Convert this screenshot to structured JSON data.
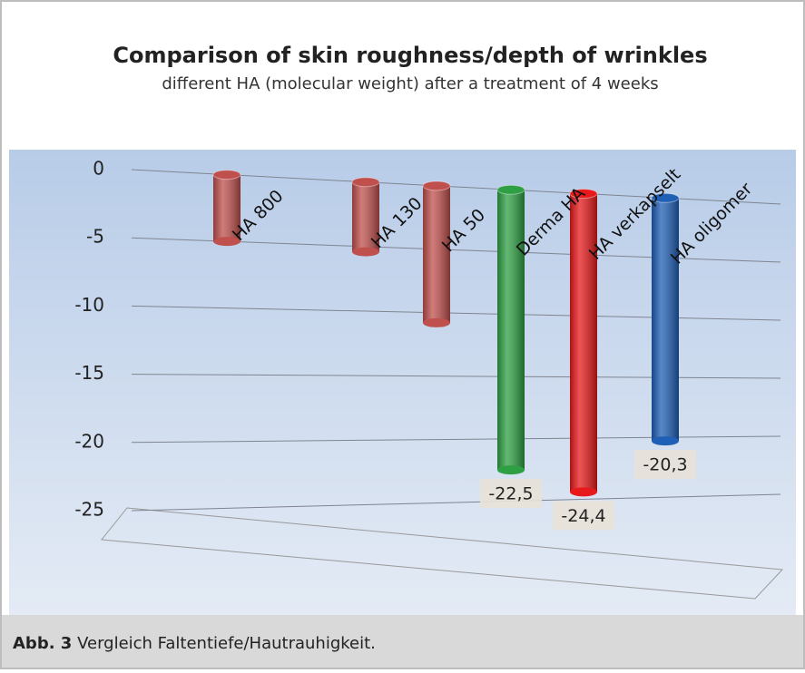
{
  "chart_data": {
    "type": "bar",
    "title": "Comparison of skin roughness/depth of wrinkles",
    "subtitle": "different HA (molecular weight) after a treatment of 4 weeks",
    "categories": [
      "HA 800",
      "HA 130",
      "HA 50",
      "Derma HA",
      "HA verkapselt",
      "HA oligomer"
    ],
    "values": [
      -5,
      -5.4,
      -10.8,
      -22.5,
      -24.4,
      -20.3
    ],
    "value_labels": [
      null,
      null,
      null,
      "-22,5",
      "-24,4",
      "-20,3"
    ],
    "colors": [
      "#c0504d",
      "#c0504d",
      "#c0504d",
      "#2ea043",
      "#e8191b",
      "#1f5fb5"
    ],
    "ylim": [
      -25,
      0
    ],
    "yticks": [
      0,
      -5,
      -10,
      -15,
      -20,
      -25
    ],
    "grid": true
  },
  "caption": {
    "label": "Abb. 3",
    "text": "Vergleich Faltentiefe/Hautrauhigkeit."
  }
}
